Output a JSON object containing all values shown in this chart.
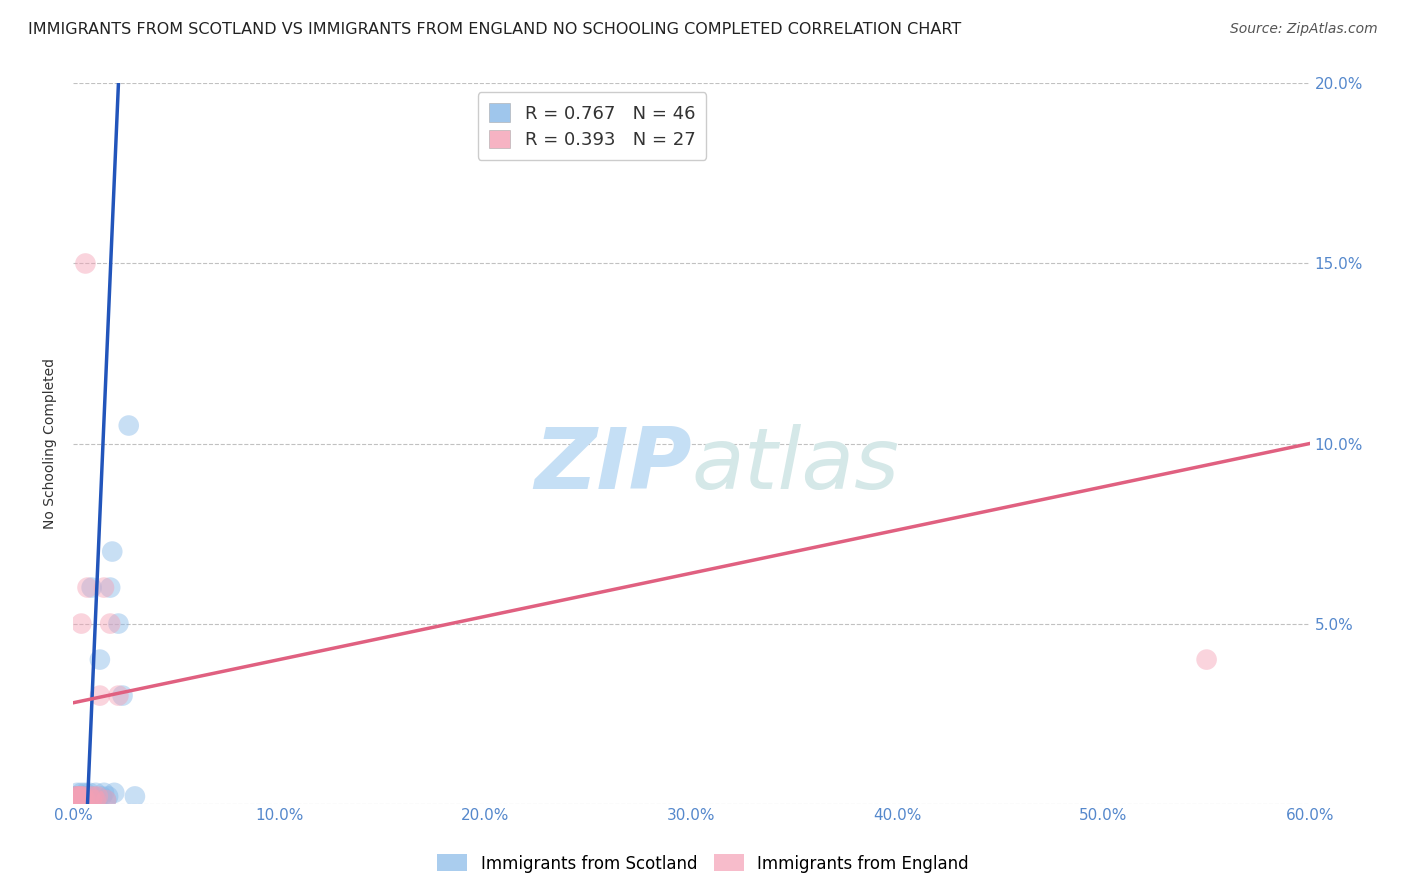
{
  "title": "IMMIGRANTS FROM SCOTLAND VS IMMIGRANTS FROM ENGLAND NO SCHOOLING COMPLETED CORRELATION CHART",
  "source": "Source: ZipAtlas.com",
  "ylabel_text": "No Schooling Completed",
  "xlim": [
    0.0,
    0.6
  ],
  "ylim": [
    0.0,
    0.2
  ],
  "xticks": [
    0.0,
    0.1,
    0.2,
    0.3,
    0.4,
    0.5,
    0.6
  ],
  "yticks": [
    0.0,
    0.05,
    0.1,
    0.15,
    0.2
  ],
  "xtick_labels": [
    "0.0%",
    "10.0%",
    "20.0%",
    "30.0%",
    "40.0%",
    "50.0%",
    "60.0%"
  ],
  "ytick_labels_right": [
    "",
    "5.0%",
    "10.0%",
    "15.0%",
    "20.0%"
  ],
  "legend_scotland": "R = 0.767   N = 46",
  "legend_england": "R = 0.393   N = 27",
  "scatter_blue_x": [
    0.001,
    0.001,
    0.001,
    0.001,
    0.001,
    0.002,
    0.002,
    0.002,
    0.002,
    0.002,
    0.002,
    0.003,
    0.003,
    0.003,
    0.003,
    0.003,
    0.004,
    0.004,
    0.004,
    0.004,
    0.005,
    0.005,
    0.005,
    0.006,
    0.006,
    0.006,
    0.007,
    0.007,
    0.008,
    0.008,
    0.009,
    0.01,
    0.011,
    0.012,
    0.013,
    0.014,
    0.015,
    0.016,
    0.017,
    0.018,
    0.019,
    0.02,
    0.022,
    0.024,
    0.027,
    0.03
  ],
  "scatter_blue_y": [
    0.001,
    0.002,
    0.001,
    0.001,
    0.002,
    0.001,
    0.002,
    0.001,
    0.002,
    0.001,
    0.003,
    0.001,
    0.002,
    0.001,
    0.002,
    0.001,
    0.002,
    0.001,
    0.003,
    0.002,
    0.001,
    0.002,
    0.001,
    0.002,
    0.001,
    0.003,
    0.002,
    0.001,
    0.003,
    0.002,
    0.06,
    0.002,
    0.003,
    0.001,
    0.04,
    0.002,
    0.003,
    0.001,
    0.002,
    0.06,
    0.07,
    0.003,
    0.05,
    0.03,
    0.105,
    0.002
  ],
  "scatter_pink_x": [
    0.001,
    0.001,
    0.002,
    0.002,
    0.002,
    0.003,
    0.003,
    0.003,
    0.004,
    0.004,
    0.004,
    0.005,
    0.005,
    0.006,
    0.006,
    0.007,
    0.008,
    0.009,
    0.01,
    0.011,
    0.012,
    0.013,
    0.015,
    0.016,
    0.018,
    0.022,
    0.55
  ],
  "scatter_pink_y": [
    0.001,
    0.002,
    0.001,
    0.002,
    0.001,
    0.002,
    0.001,
    0.002,
    0.001,
    0.002,
    0.05,
    0.001,
    0.002,
    0.001,
    0.15,
    0.06,
    0.002,
    0.001,
    0.002,
    0.001,
    0.002,
    0.03,
    0.06,
    0.001,
    0.05,
    0.03,
    0.04
  ],
  "blue_line_x1": 0.007,
  "blue_line_y1": 0.0,
  "blue_line_x2": 0.022,
  "blue_line_y2": 0.2,
  "pink_line_x1": 0.0,
  "pink_line_y1": 0.028,
  "pink_line_x2": 0.6,
  "pink_line_y2": 0.1,
  "scatter_blue_color": "#87b8e8",
  "scatter_pink_color": "#f4a0b5",
  "line_blue_color": "#2255bb",
  "line_pink_color": "#e06080",
  "background_color": "#ffffff",
  "watermark_zip_color": "#c5dff5",
  "watermark_atlas_color": "#d5e8e8",
  "title_fontsize": 11.5,
  "axis_label_fontsize": 10,
  "tick_fontsize": 11,
  "source_fontsize": 10,
  "legend_fontsize": 13
}
